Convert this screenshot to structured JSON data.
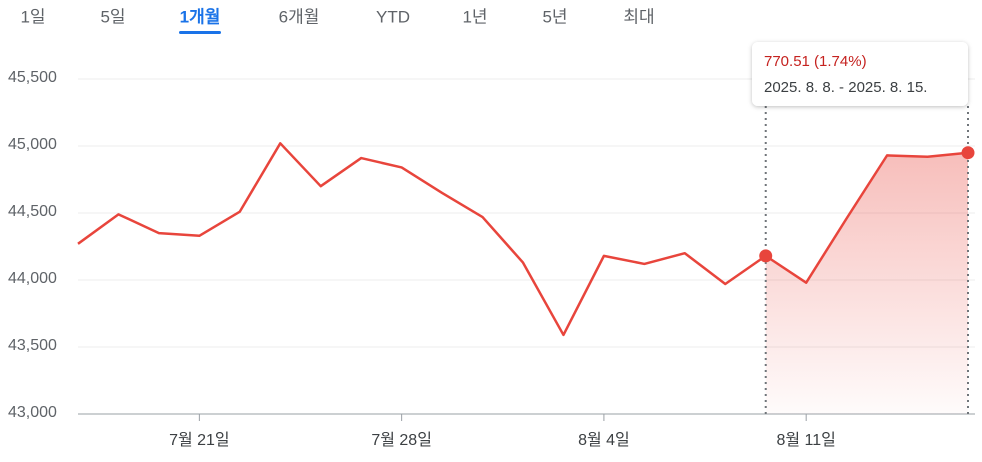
{
  "tabs": [
    "1일",
    "5일",
    "1개월",
    "6개월",
    "YTD",
    "1년",
    "5년",
    "최대"
  ],
  "active_tab": 2,
  "tooltip": {
    "change": "770.51 (1.74%)",
    "range": "2025. 8. 8. - 2025. 8. 15."
  },
  "chart_data": {
    "type": "line",
    "categories": [
      null,
      null,
      null,
      "7월 21일",
      null,
      null,
      null,
      null,
      "7월 28일",
      null,
      null,
      null,
      null,
      "8월 4일",
      null,
      null,
      null,
      null,
      "8월 11일",
      null,
      null,
      null,
      null
    ],
    "values": [
      44270,
      44490,
      44350,
      44330,
      44510,
      45020,
      44700,
      44910,
      44840,
      44650,
      44470,
      44130,
      43590,
      44180,
      44120,
      44200,
      43970,
      44180,
      43980,
      44460,
      44930,
      44920,
      44950
    ],
    "color": "#e8453c",
    "selection": [
      17,
      22
    ],
    "ylim": [
      43000,
      45500
    ],
    "yticks": [
      {
        "value": 43000,
        "label": "43,000"
      },
      {
        "value": 43500,
        "label": "43,500"
      },
      {
        "value": 44000,
        "label": "44,000"
      },
      {
        "value": 44500,
        "label": "44,500"
      },
      {
        "value": 45000,
        "label": "45,000"
      },
      {
        "value": 45500,
        "label": "45,500"
      }
    ],
    "grid": true
  }
}
